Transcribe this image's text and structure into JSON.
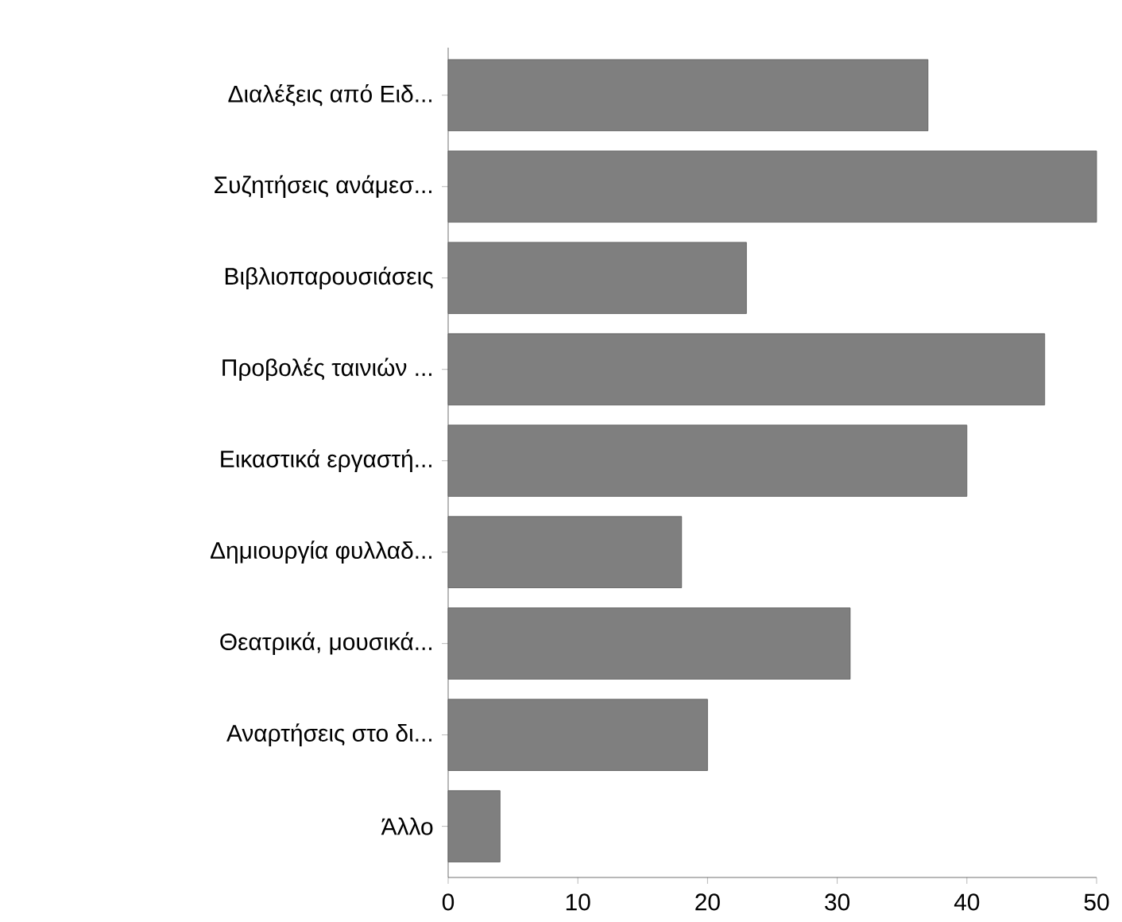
{
  "chart_data": {
    "type": "bar",
    "orientation": "horizontal",
    "categories": [
      "Διαλέξεις από Ειδ...",
      "Συζητήσεις ανάμεσ...",
      "Βιβλιοπαρουσιάσεις",
      "Προβολές ταινιών ...",
      "Εικαστικά εργαστή...",
      "Δημιουργία φυλλαδ...",
      "Θεατρικά, μουσικά...",
      "Αναρτήσεις στο δι...",
      "Άλλο"
    ],
    "values": [
      37,
      50,
      23,
      46,
      40,
      18,
      31,
      20,
      4
    ],
    "color": "#7f7f7f",
    "xlim": [
      0,
      50
    ],
    "xticks": [
      0,
      10,
      20,
      30,
      40,
      50
    ]
  }
}
